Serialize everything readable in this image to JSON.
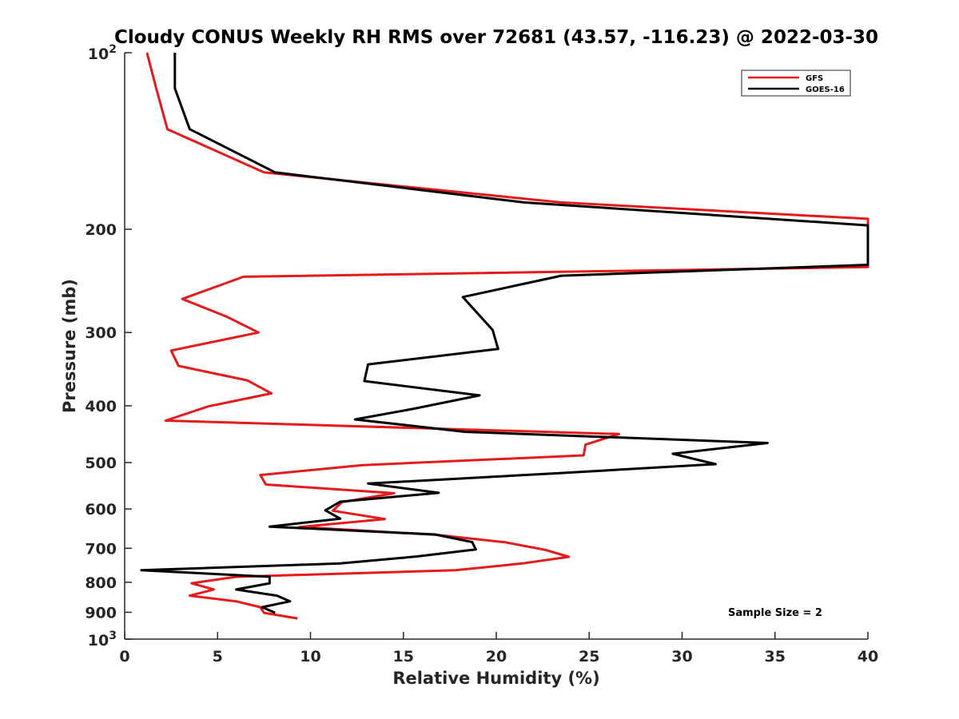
{
  "chart_data": {
    "type": "line",
    "title": "Cloudy CONUS Weekly RH RMS over 72681 (43.57, -116.23) @ 2022-03-30",
    "xlabel": "Relative Humidity (%)",
    "ylabel": "Pressure (mb)",
    "xlim": [
      0,
      40
    ],
    "ylim": [
      100,
      1000
    ],
    "y_scale": "log",
    "y_reversed": true,
    "grid": false,
    "legend_position": "top-right",
    "x_ticks": [
      "0",
      "5",
      "10",
      "15",
      "20",
      "25",
      "30",
      "35",
      "40"
    ],
    "y_ticks": [
      {
        "value": 100,
        "base": "10",
        "exp": "2"
      },
      {
        "value": 200,
        "label": "200"
      },
      {
        "value": 300,
        "label": "300"
      },
      {
        "value": 400,
        "label": "400"
      },
      {
        "value": 500,
        "label": "500"
      },
      {
        "value": 600,
        "label": "600"
      },
      {
        "value": 700,
        "label": "700"
      },
      {
        "value": 800,
        "label": "800"
      },
      {
        "value": 900,
        "label": "900"
      },
      {
        "value": 1000,
        "base": "10",
        "exp": "3"
      }
    ],
    "annotation": "Sample Size = 2",
    "series": [
      {
        "name": "GFS",
        "color": "#e41a1c",
        "points": [
          {
            "x": 1.2,
            "p": 100
          },
          {
            "x": 1.7,
            "p": 115
          },
          {
            "x": 2.3,
            "p": 135
          },
          {
            "x": 7.5,
            "p": 160
          },
          {
            "x": 23.5,
            "p": 180
          },
          {
            "x": 40.0,
            "p": 192
          },
          {
            "x": 40.0,
            "p": 232
          },
          {
            "x": 6.4,
            "p": 241
          },
          {
            "x": 3.1,
            "p": 263
          },
          {
            "x": 5.5,
            "p": 282
          },
          {
            "x": 7.2,
            "p": 300
          },
          {
            "x": 2.5,
            "p": 322
          },
          {
            "x": 2.9,
            "p": 342
          },
          {
            "x": 6.6,
            "p": 362
          },
          {
            "x": 7.9,
            "p": 381
          },
          {
            "x": 4.5,
            "p": 401
          },
          {
            "x": 2.2,
            "p": 424
          },
          {
            "x": 26.6,
            "p": 447
          },
          {
            "x": 24.8,
            "p": 466
          },
          {
            "x": 24.7,
            "p": 486
          },
          {
            "x": 12.8,
            "p": 505
          },
          {
            "x": 7.3,
            "p": 525
          },
          {
            "x": 7.6,
            "p": 545
          },
          {
            "x": 14.5,
            "p": 564
          },
          {
            "x": 11.7,
            "p": 584
          },
          {
            "x": 11.2,
            "p": 604
          },
          {
            "x": 14.0,
            "p": 624
          },
          {
            "x": 9.4,
            "p": 644
          },
          {
            "x": 16.8,
            "p": 664
          },
          {
            "x": 20.5,
            "p": 684
          },
          {
            "x": 22.6,
            "p": 704
          },
          {
            "x": 23.9,
            "p": 724
          },
          {
            "x": 21.4,
            "p": 743
          },
          {
            "x": 17.8,
            "p": 763
          },
          {
            "x": 6.0,
            "p": 783
          },
          {
            "x": 3.6,
            "p": 803
          },
          {
            "x": 4.8,
            "p": 823
          },
          {
            "x": 3.5,
            "p": 843
          },
          {
            "x": 6.0,
            "p": 862
          },
          {
            "x": 7.3,
            "p": 882
          },
          {
            "x": 7.5,
            "p": 902
          },
          {
            "x": 9.3,
            "p": 922
          }
        ]
      },
      {
        "name": "GOES-16",
        "color": "#000000",
        "points": [
          {
            "x": 2.7,
            "p": 100
          },
          {
            "x": 2.7,
            "p": 115
          },
          {
            "x": 3.5,
            "p": 135
          },
          {
            "x": 8.1,
            "p": 160
          },
          {
            "x": 21.5,
            "p": 180
          },
          {
            "x": 40.0,
            "p": 197
          },
          {
            "x": 40.0,
            "p": 230
          },
          {
            "x": 23.5,
            "p": 240
          },
          {
            "x": 18.2,
            "p": 261
          },
          {
            "x": 19.8,
            "p": 297
          },
          {
            "x": 20.1,
            "p": 320
          },
          {
            "x": 13.1,
            "p": 340
          },
          {
            "x": 12.9,
            "p": 363
          },
          {
            "x": 19.1,
            "p": 384
          },
          {
            "x": 15.5,
            "p": 405
          },
          {
            "x": 12.4,
            "p": 422
          },
          {
            "x": 18.3,
            "p": 443
          },
          {
            "x": 34.6,
            "p": 463
          },
          {
            "x": 29.5,
            "p": 483
          },
          {
            "x": 31.8,
            "p": 503
          },
          {
            "x": 23.4,
            "p": 521
          },
          {
            "x": 13.1,
            "p": 543
          },
          {
            "x": 16.9,
            "p": 563
          },
          {
            "x": 11.6,
            "p": 583
          },
          {
            "x": 10.8,
            "p": 603
          },
          {
            "x": 11.6,
            "p": 623
          },
          {
            "x": 7.8,
            "p": 643
          },
          {
            "x": 16.7,
            "p": 663
          },
          {
            "x": 18.7,
            "p": 683
          },
          {
            "x": 18.9,
            "p": 703
          },
          {
            "x": 15.7,
            "p": 723
          },
          {
            "x": 11.6,
            "p": 743
          },
          {
            "x": 0.9,
            "p": 763
          },
          {
            "x": 7.8,
            "p": 783
          },
          {
            "x": 7.8,
            "p": 803
          },
          {
            "x": 6.0,
            "p": 823
          },
          {
            "x": 8.2,
            "p": 843
          },
          {
            "x": 8.9,
            "p": 862
          },
          {
            "x": 7.4,
            "p": 882
          },
          {
            "x": 8.1,
            "p": 902
          }
        ]
      }
    ]
  }
}
